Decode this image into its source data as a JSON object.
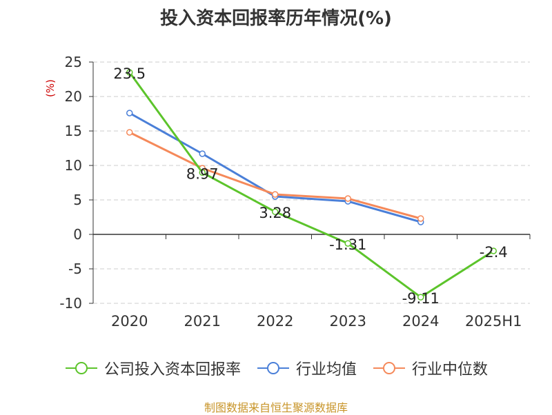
{
  "chart_data": {
    "type": "line",
    "title": "投入资本回报率历年情况(%)",
    "ylabel": "(%)",
    "categories": [
      "2020",
      "2021",
      "2022",
      "2023",
      "2024",
      "2025H1"
    ],
    "ylim": [
      -10,
      25
    ],
    "yticks": [
      25,
      20,
      15,
      10,
      5,
      0,
      -5,
      -10
    ],
    "grid": true,
    "legend_position": "bottom",
    "series": [
      {
        "name": "公司投入资本回报率",
        "color": "#5cc42b",
        "values": [
          23.5,
          8.97,
          3.28,
          -1.31,
          -9.11,
          -2.4
        ],
        "labels": [
          "23.5",
          "8.97",
          "3.28",
          "-1.31",
          "-9.11",
          "-2.4"
        ]
      },
      {
        "name": "行业均值",
        "color": "#4a7fd8",
        "values": [
          17.6,
          11.7,
          5.5,
          4.8,
          1.8,
          null
        ]
      },
      {
        "name": "行业中位数",
        "color": "#f5895a",
        "values": [
          14.8,
          9.6,
          5.8,
          5.2,
          2.3,
          null
        ]
      }
    ]
  },
  "source": "制图数据来自恒生聚源数据库"
}
